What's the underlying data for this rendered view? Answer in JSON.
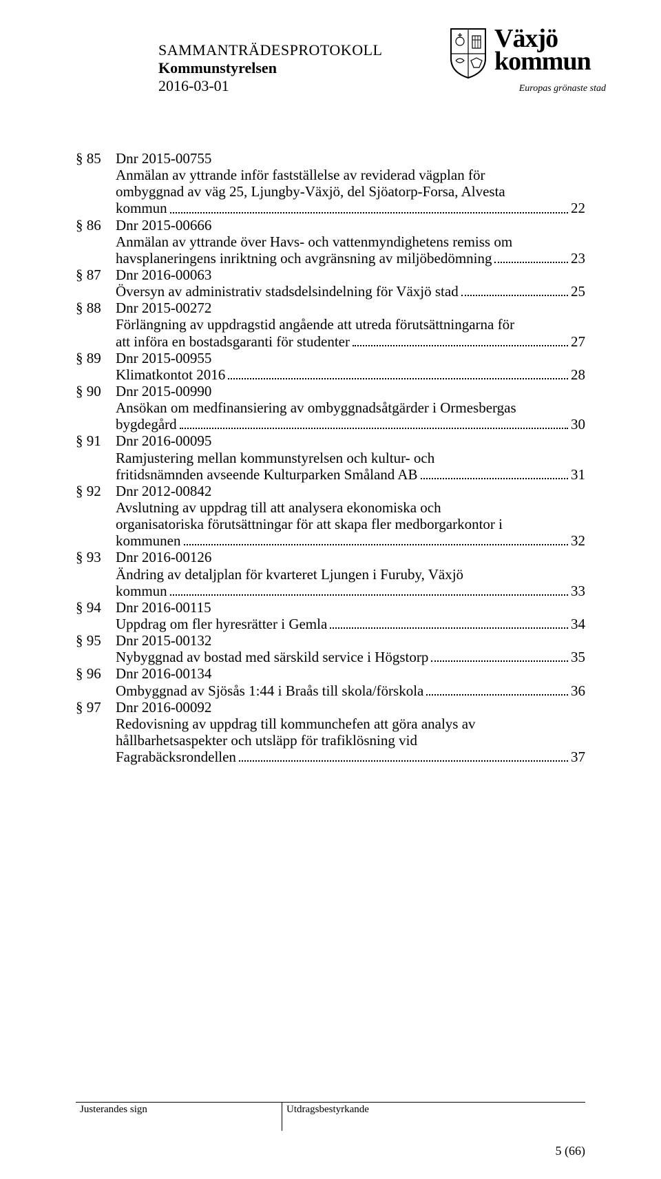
{
  "header": {
    "title": "SAMMANTRÄDESPROTOKOLL",
    "subtitle": "Kommunstyrelsen",
    "date": "2016-03-01"
  },
  "logo": {
    "line1": "Växjö",
    "line2": "kommun",
    "tagline": "Europas grönaste stad"
  },
  "toc": [
    {
      "section": "§ 85",
      "dnr": "Dnr 2015-00755",
      "title_lines": [
        "Anmälan av yttrande inför fastställelse av reviderad vägplan för",
        "ombyggnad av väg 25, Ljungby-Växjö, del Sjöatorp-Forsa, Alvesta"
      ],
      "last_line": "kommun",
      "page": "22"
    },
    {
      "section": "§ 86",
      "dnr": "Dnr 2015-00666",
      "title_lines": [
        "Anmälan av yttrande över Havs- och vattenmyndighetens remiss om"
      ],
      "last_line": "havsplaneringens inriktning och avgränsning av miljöbedömning",
      "page": "23"
    },
    {
      "section": "§ 87",
      "dnr": "Dnr 2016-00063",
      "title_lines": [],
      "last_line": "Översyn av administrativ stadsdelsindelning för Växjö stad",
      "page": "25"
    },
    {
      "section": "§ 88",
      "dnr": "Dnr 2015-00272",
      "title_lines": [
        "Förlängning av uppdragstid angående att utreda förutsättningarna för"
      ],
      "last_line": "att införa en bostadsgaranti för studenter",
      "page": "27"
    },
    {
      "section": "§ 89",
      "dnr": "Dnr 2015-00955",
      "title_lines": [],
      "last_line": "Klimatkontot 2016",
      "page": "28"
    },
    {
      "section": "§ 90",
      "dnr": "Dnr 2015-00990",
      "title_lines": [
        "Ansökan om medfinansiering av ombyggnadsåtgärder i Ormesbergas"
      ],
      "last_line": "bygdegård",
      "page": "30"
    },
    {
      "section": "§ 91",
      "dnr": "Dnr 2016-00095",
      "title_lines": [
        "Ramjustering mellan kommunstyrelsen och kultur- och"
      ],
      "last_line": "fritidsnämnden avseende Kulturparken Småland AB",
      "page": "31"
    },
    {
      "section": "§ 92",
      "dnr": "Dnr 2012-00842",
      "title_lines": [
        "Avslutning av uppdrag till att analysera ekonomiska och",
        "organisatoriska förutsättningar för att skapa fler medborgarkontor i"
      ],
      "last_line": "kommunen",
      "page": "32"
    },
    {
      "section": "§ 93",
      "dnr": "Dnr 2016-00126",
      "title_lines": [
        "Ändring av detaljplan för kvarteret Ljungen i Furuby, Växjö"
      ],
      "last_line": "kommun",
      "page": "33"
    },
    {
      "section": "§ 94",
      "dnr": "Dnr 2016-00115",
      "title_lines": [],
      "last_line": "Uppdrag om fler hyresrätter i Gemla",
      "page": "34"
    },
    {
      "section": "§ 95",
      "dnr": "Dnr 2015-00132",
      "title_lines": [],
      "last_line": "Nybyggnad av bostad med särskild service i Högstorp",
      "page": "35"
    },
    {
      "section": "§ 96",
      "dnr": "Dnr 2016-00134",
      "title_lines": [],
      "last_line": "Ombyggnad av Sjösås 1:44 i Braås till skola/förskola",
      "page": "36"
    },
    {
      "section": "§ 97",
      "dnr": "Dnr 2016-00092",
      "title_lines": [
        "Redovisning av uppdrag till kommunchefen att göra analys av",
        "hållbarhetsaspekter och utsläpp för trafiklösning vid"
      ],
      "last_line": "Fagrabäcksrondellen",
      "page": "37"
    }
  ],
  "footer": {
    "left_label": "Justerandes sign",
    "right_label": "Utdragsbestyrkande"
  },
  "page_number": "5 (66)"
}
